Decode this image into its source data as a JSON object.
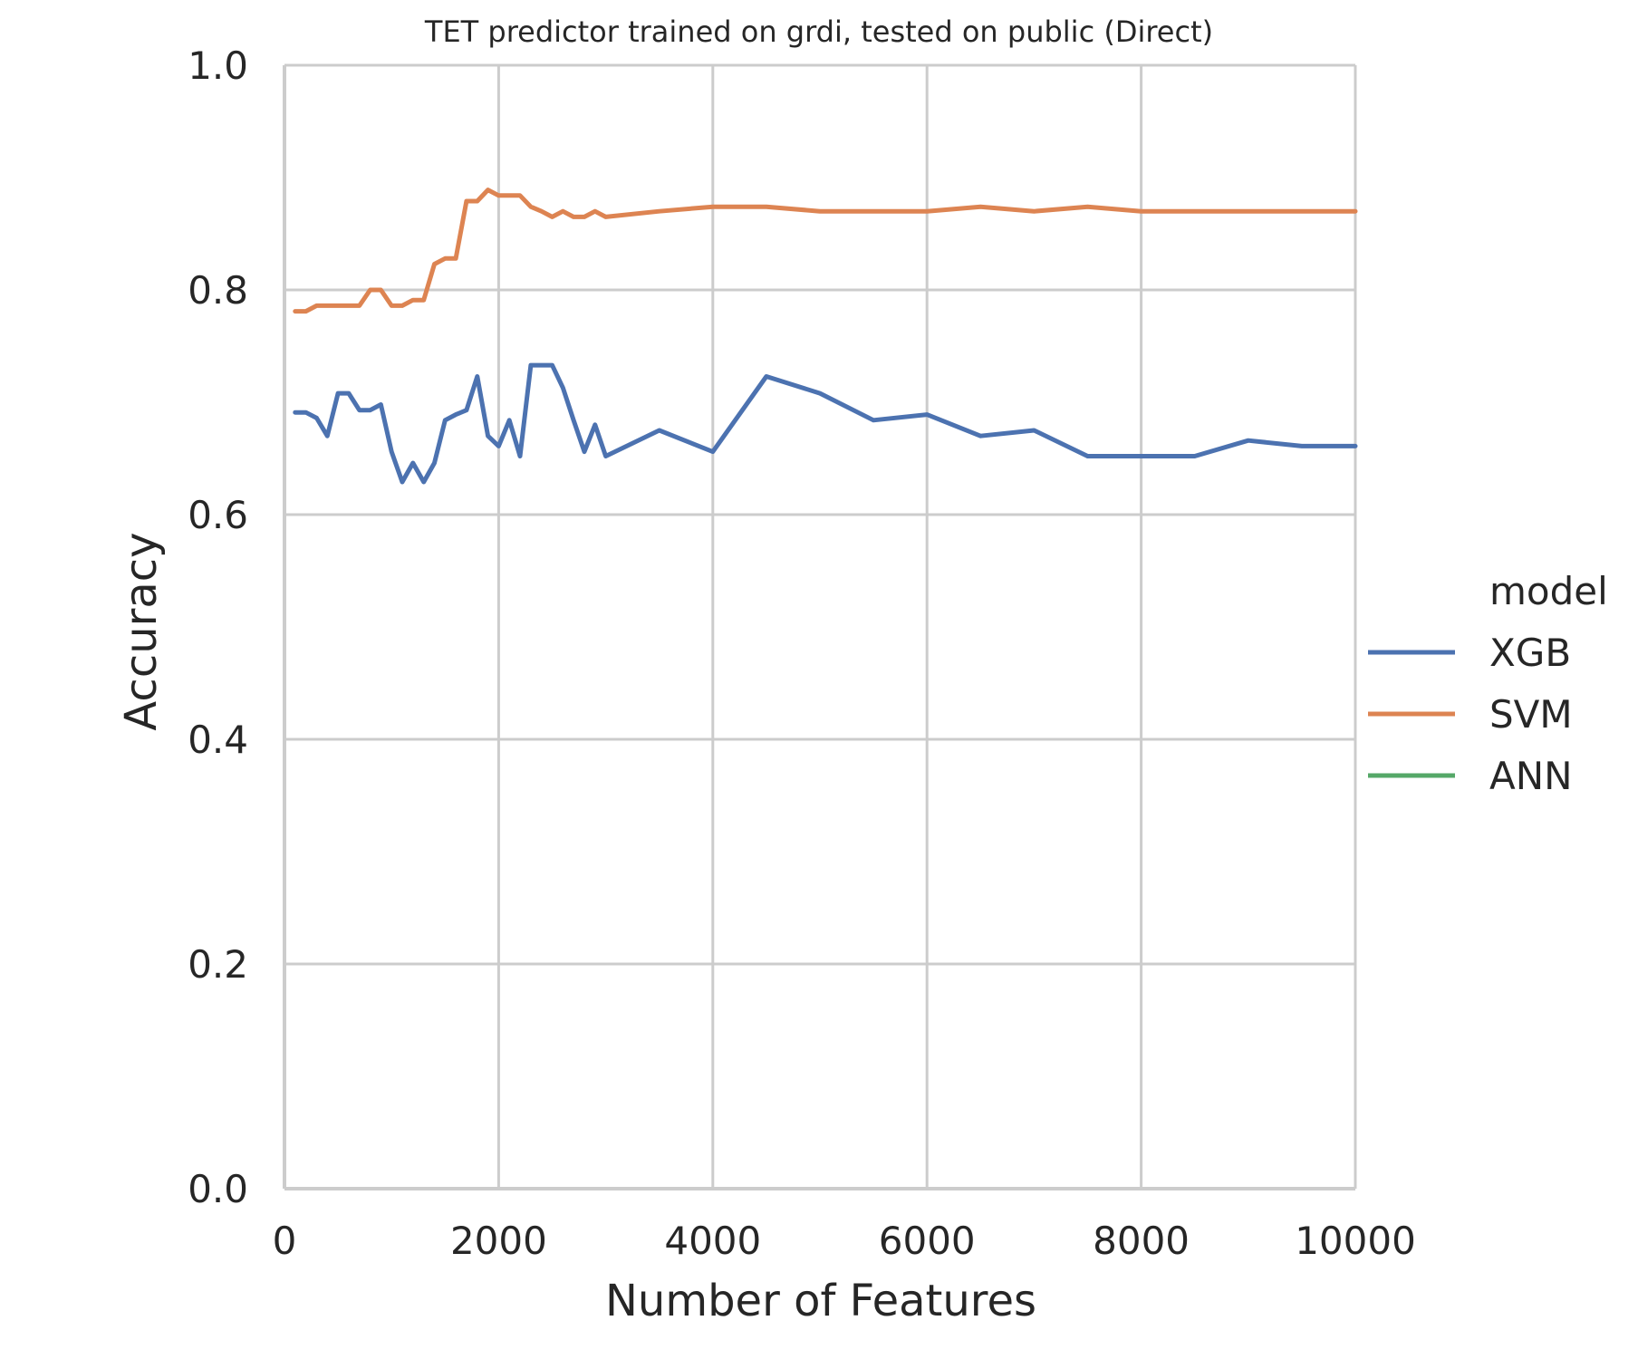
{
  "chart_data": {
    "type": "line",
    "title": "TET predictor trained on grdi, tested on public (Direct)",
    "xlabel": "Number of Features",
    "ylabel": "Accuracy",
    "xlim": [
      0,
      10000
    ],
    "ylim": [
      0.0,
      1.0
    ],
    "xticks": [
      "0",
      "2000",
      "4000",
      "6000",
      "8000",
      "10000"
    ],
    "yticks": [
      "0.0",
      "0.2",
      "0.4",
      "0.6",
      "0.8",
      "1.0"
    ],
    "grid": true,
    "legend": {
      "title": "model",
      "placement": "right"
    },
    "series": [
      {
        "name": "XGB",
        "color": "#4c72b0",
        "x": [
          100,
          200,
          300,
          400,
          500,
          600,
          700,
          800,
          900,
          1000,
          1100,
          1200,
          1300,
          1400,
          1500,
          1600,
          1700,
          1800,
          1900,
          2000,
          2100,
          2200,
          2300,
          2400,
          2500,
          2600,
          2700,
          2800,
          2900,
          3000,
          3500,
          4000,
          4500,
          5000,
          5500,
          6000,
          6500,
          7000,
          7500,
          8000,
          8500,
          9000,
          9500,
          10000
        ],
        "y": [
          0.691,
          0.691,
          0.686,
          0.67,
          0.708,
          0.708,
          0.693,
          0.693,
          0.698,
          0.656,
          0.629,
          0.646,
          0.629,
          0.646,
          0.684,
          0.689,
          0.693,
          0.723,
          0.67,
          0.661,
          0.684,
          0.652,
          0.733,
          0.733,
          0.733,
          0.713,
          0.684,
          0.656,
          0.68,
          0.652,
          0.675,
          0.656,
          0.723,
          0.708,
          0.684,
          0.689,
          0.67,
          0.675,
          0.652,
          0.652,
          0.652,
          0.666,
          0.661,
          0.661
        ]
      },
      {
        "name": "SVM",
        "color": "#dd8452",
        "x": [
          100,
          200,
          300,
          400,
          500,
          600,
          700,
          800,
          900,
          1000,
          1100,
          1200,
          1300,
          1400,
          1500,
          1600,
          1700,
          1800,
          1900,
          2000,
          2100,
          2200,
          2300,
          2400,
          2500,
          2600,
          2700,
          2800,
          2900,
          3000,
          3500,
          4000,
          4500,
          5000,
          5500,
          6000,
          6500,
          7000,
          7500,
          8000,
          8500,
          9000,
          9500,
          10000
        ],
        "y": [
          0.781,
          0.781,
          0.786,
          0.786,
          0.786,
          0.786,
          0.786,
          0.8,
          0.8,
          0.786,
          0.786,
          0.791,
          0.791,
          0.823,
          0.828,
          0.828,
          0.879,
          0.879,
          0.889,
          0.884,
          0.884,
          0.884,
          0.874,
          0.87,
          0.865,
          0.87,
          0.865,
          0.865,
          0.87,
          0.865,
          0.87,
          0.874,
          0.874,
          0.87,
          0.87,
          0.87,
          0.874,
          0.87,
          0.874,
          0.87,
          0.87,
          0.87,
          0.87,
          0.87
        ]
      },
      {
        "name": "ANN",
        "color": "#55a868",
        "x": [],
        "y": []
      }
    ]
  }
}
